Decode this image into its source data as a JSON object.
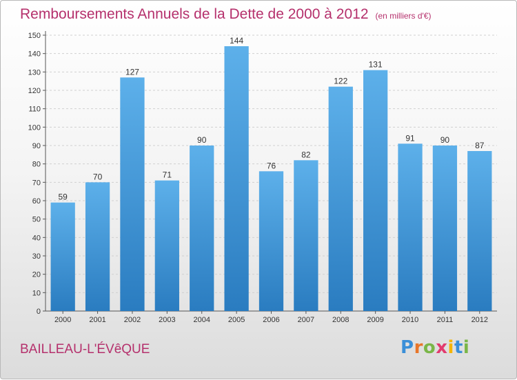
{
  "header": {
    "title": "Remboursements Annuels de la Dette de 2000 à 2012",
    "unit": "(en milliers d'€)"
  },
  "footer": {
    "place": "BAILLEAU-L'ÉVêQUE",
    "logo": "Proxiti"
  },
  "colors": {
    "accent": "#b5306c",
    "bar_top": "#5db0ea",
    "bar_bottom": "#2a7cc0",
    "logo_letters": [
      "#3a8fd8",
      "#e8762a",
      "#7ab648",
      "#e23b6e",
      "#f4b400",
      "#3a8fd8",
      "#7ab648"
    ]
  },
  "chart_data": {
    "type": "bar",
    "title": "Remboursements Annuels de la Dette de 2000 à 2012",
    "xlabel": "",
    "ylabel": "",
    "categories": [
      "2000",
      "2001",
      "2002",
      "2003",
      "2004",
      "2005",
      "2006",
      "2007",
      "2008",
      "2009",
      "2010",
      "2011",
      "2012"
    ],
    "values": [
      59,
      70,
      127,
      71,
      90,
      144,
      76,
      82,
      122,
      131,
      91,
      90,
      87
    ],
    "ylim": [
      0,
      150
    ],
    "yticks": [
      0,
      10,
      20,
      30,
      40,
      50,
      60,
      70,
      80,
      90,
      100,
      110,
      120,
      130,
      140,
      150
    ],
    "grid": true,
    "legend": "none"
  }
}
